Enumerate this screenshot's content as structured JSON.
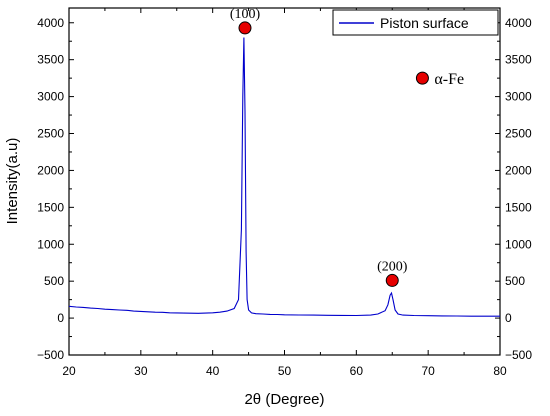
{
  "chart_data": {
    "type": "line",
    "xlabel": "2θ (Degree)",
    "ylabel": "Intensity(a.u)",
    "xlim": [
      20,
      80
    ],
    "ylim": [
      -500,
      4200
    ],
    "x_ticks": [
      "20",
      "30",
      "40",
      "50",
      "60",
      "70",
      "80"
    ],
    "y_ticks": [
      "−500",
      "0",
      "500",
      "1000",
      "1500",
      "2000",
      "2500",
      "3000",
      "3500",
      "4000"
    ],
    "y_tick_values": [
      -500,
      0,
      500,
      1000,
      1500,
      2000,
      2500,
      3000,
      3500,
      4000
    ],
    "x_tick_values": [
      20,
      30,
      40,
      50,
      60,
      70,
      80
    ],
    "grid": false,
    "legend_position": "top-right",
    "colors": {
      "series": "#0000cc",
      "marker": "#e60000"
    },
    "series": [
      {
        "name": "Piston surface",
        "x": [
          20,
          21,
          22,
          23,
          24,
          25,
          26,
          27,
          28,
          29,
          30,
          31,
          32,
          33,
          34,
          35,
          36,
          37,
          38,
          39,
          40,
          41,
          42,
          43,
          43.6,
          44.0,
          44.2,
          44.35,
          44.5,
          44.65,
          44.8,
          45.0,
          45.4,
          46,
          47,
          48,
          49,
          50,
          52,
          54,
          56,
          58,
          60,
          62,
          63,
          64,
          64.4,
          64.7,
          64.9,
          65.1,
          65.4,
          65.8,
          66.5,
          68,
          70,
          72,
          74,
          76,
          78,
          80
        ],
        "y": [
          160,
          150,
          145,
          135,
          130,
          120,
          115,
          110,
          105,
          95,
          90,
          85,
          80,
          78,
          72,
          70,
          68,
          66,
          65,
          68,
          72,
          80,
          95,
          130,
          250,
          1200,
          3000,
          3800,
          2800,
          900,
          250,
          110,
          70,
          60,
          55,
          50,
          48,
          45,
          42,
          40,
          38,
          36,
          35,
          40,
          55,
          100,
          180,
          310,
          340,
          250,
          110,
          55,
          40,
          35,
          32,
          30,
          28,
          26,
          25,
          25
        ]
      }
    ],
    "peak_labels": [
      {
        "text": "(100)",
        "x": 44.5,
        "y": 3930
      },
      {
        "text": "(200)",
        "x": 65,
        "y": 510
      }
    ],
    "phase_legend": {
      "label": "α-Fe",
      "x": 69.2,
      "y": 3250
    }
  }
}
